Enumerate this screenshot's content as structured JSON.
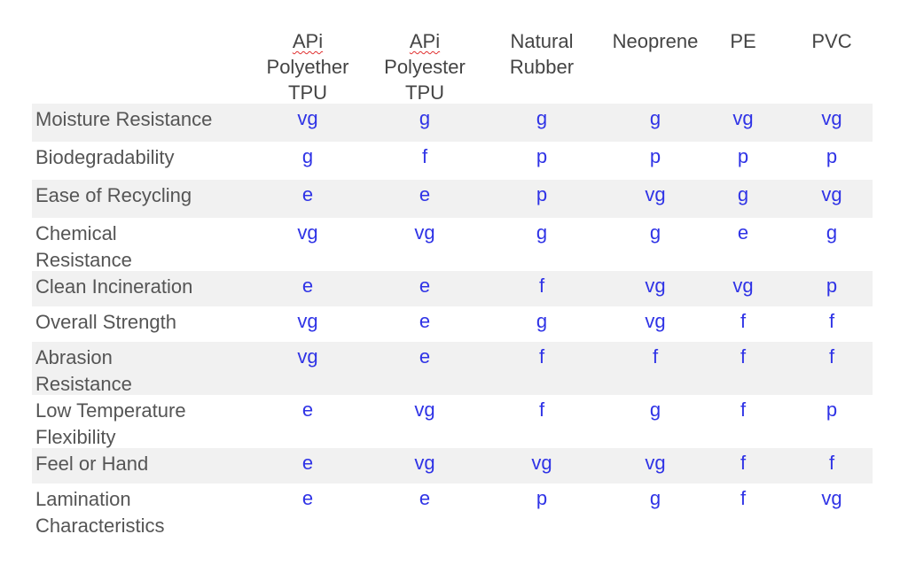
{
  "columns": [
    {
      "lines": [
        "APi",
        "Polyether",
        "TPU"
      ]
    },
    {
      "lines": [
        "APi",
        "Polyester",
        "TPU"
      ]
    },
    {
      "lines": [
        "Natural",
        "Rubber"
      ]
    },
    {
      "lines": [
        "Neoprene"
      ]
    },
    {
      "lines": [
        "PE"
      ]
    },
    {
      "lines": [
        "PVC"
      ]
    }
  ],
  "rows": [
    {
      "label": [
        "Moisture Resistance"
      ],
      "values": [
        "vg",
        "g",
        "g",
        "g",
        "vg",
        "vg"
      ]
    },
    {
      "label": [
        "Biodegradability"
      ],
      "values": [
        "g",
        "f",
        "p",
        "p",
        "p",
        "p"
      ]
    },
    {
      "label": [
        "Ease of Recycling"
      ],
      "values": [
        "e",
        "e",
        "p",
        "vg",
        "g",
        "vg"
      ]
    },
    {
      "label": [
        "Chemical",
        "Resistance"
      ],
      "values": [
        "vg",
        "vg",
        "g",
        "g",
        "e",
        "g"
      ]
    },
    {
      "label": [
        "Clean Incineration"
      ],
      "values": [
        "e",
        "e",
        "f",
        "vg",
        "vg",
        "p"
      ]
    },
    {
      "label": [
        "Overall Strength"
      ],
      "values": [
        "vg",
        "e",
        "g",
        "vg",
        "f",
        "f"
      ]
    },
    {
      "label": [
        "Abrasion",
        "Resistance"
      ],
      "values": [
        "vg",
        "e",
        "f",
        "f",
        "f",
        "f"
      ]
    },
    {
      "label": [
        "Low Temperature",
        "Flexibility"
      ],
      "values": [
        "e",
        "vg",
        "f",
        "g",
        "f",
        "p"
      ]
    },
    {
      "label": [
        "Feel or Hand"
      ],
      "values": [
        "e",
        "vg",
        "vg",
        "vg",
        "f",
        "f"
      ]
    },
    {
      "label": [
        "Lamination",
        "Characteristics"
      ],
      "values": [
        "e",
        "e",
        "p",
        "g",
        "f",
        "vg"
      ]
    }
  ]
}
